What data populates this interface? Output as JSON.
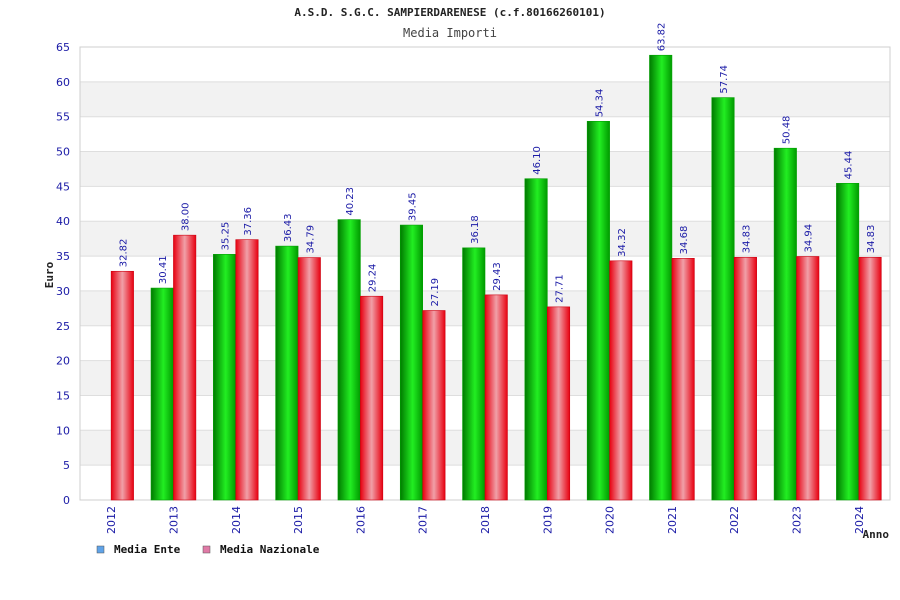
{
  "chart_data": {
    "type": "bar",
    "title": "A.S.D. S.G.C. SAMPIERDARENESE (c.f.80166260101)",
    "subtitle": "Media Importi",
    "xlabel": "Anno",
    "ylabel": "Euro",
    "ylim": [
      0,
      65
    ],
    "yticks": [
      0,
      5,
      10,
      15,
      20,
      25,
      30,
      35,
      40,
      45,
      50,
      55,
      60,
      65
    ],
    "grid": true,
    "legend_position": "bottom-left",
    "categories": [
      "2012",
      "2013",
      "2014",
      "2015",
      "2016",
      "2017",
      "2018",
      "2019",
      "2020",
      "2021",
      "2022",
      "2023",
      "2024"
    ],
    "series": [
      {
        "name": "Media Ente",
        "color": "#00cc00",
        "legend_color": "#5fa3e8",
        "values": [
          null,
          30.41,
          35.25,
          36.43,
          40.23,
          39.45,
          36.18,
          46.1,
          54.34,
          63.82,
          57.74,
          50.48,
          45.44
        ],
        "labels": [
          "",
          "30.41",
          "35.25",
          "36.43",
          "40.23",
          "39.45",
          "36.18",
          "46.10",
          "54.34",
          "63.82",
          "57.74",
          "50.48",
          "45.44"
        ]
      },
      {
        "name": "Media Nazionale",
        "color": "#ee1122",
        "legend_color": "#e07aa6",
        "values": [
          32.82,
          38.0,
          37.36,
          34.79,
          29.24,
          27.19,
          29.43,
          27.71,
          34.32,
          34.68,
          34.83,
          34.94,
          34.83
        ],
        "labels": [
          "32.82",
          "38.00",
          "37.36",
          "34.79",
          "29.24",
          "27.19",
          "29.43",
          "27.71",
          "34.32",
          "34.68",
          "34.83",
          "34.94",
          "34.83"
        ]
      }
    ]
  }
}
